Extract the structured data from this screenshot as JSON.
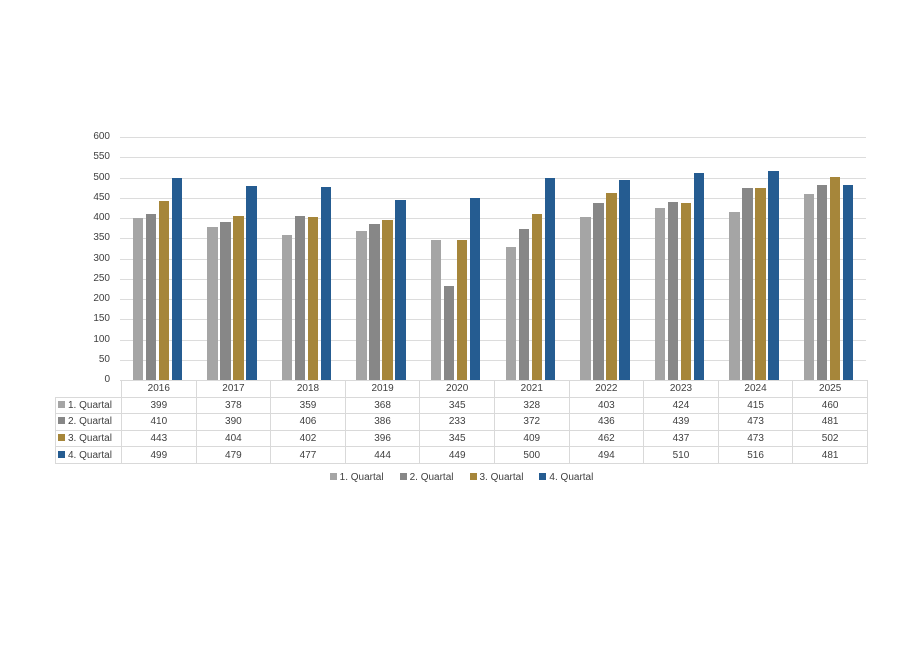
{
  "chart_data": {
    "type": "bar",
    "title": "",
    "xlabel": "",
    "ylabel": "",
    "ylim": [
      0,
      600
    ],
    "yticks": [
      0,
      50,
      100,
      150,
      200,
      250,
      300,
      350,
      400,
      450,
      500,
      550,
      600
    ],
    "grid": true,
    "legend_position": "bottom",
    "data_table": true,
    "categories": [
      "2016",
      "2017",
      "2018",
      "2019",
      "2020",
      "2021",
      "2022",
      "2023",
      "2024",
      "2025"
    ],
    "series": [
      {
        "name": "1. Quartal",
        "color": "#a5a5a5",
        "values": [
          399,
          378,
          359,
          368,
          345,
          328,
          403,
          424,
          415,
          460
        ]
      },
      {
        "name": "2. Quartal",
        "color": "#878787",
        "values": [
          410,
          390,
          406,
          386,
          233,
          372,
          436,
          439,
          473,
          481
        ]
      },
      {
        "name": "3. Quartal",
        "color": "#a6863a",
        "values": [
          443,
          404,
          402,
          396,
          345,
          409,
          462,
          437,
          473,
          502
        ]
      },
      {
        "name": "4. Quartal",
        "color": "#255c91",
        "values": [
          499,
          479,
          477,
          444,
          449,
          500,
          494,
          510,
          516,
          481
        ]
      }
    ]
  }
}
